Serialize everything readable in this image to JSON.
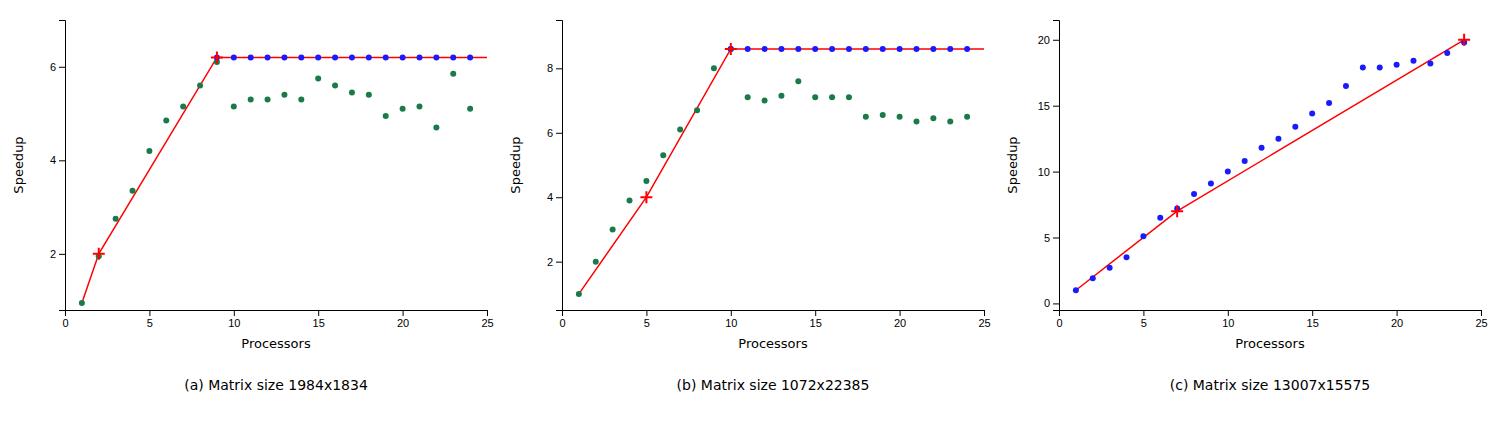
{
  "chart_data": [
    {
      "type": "scatter",
      "title": "(a) Matrix size 1984x1834",
      "xlabel": "Processors",
      "ylabel": "Speedup",
      "xlim": [
        0,
        25
      ],
      "ylim": [
        0.8,
        7.0
      ],
      "xticks": [
        0,
        5,
        10,
        15,
        20,
        25
      ],
      "yticks": [
        2,
        4,
        6
      ],
      "grid": false,
      "series": [
        {
          "type": "scatter",
          "marker": "circle",
          "color": "#1a7a4a",
          "x": [
            1,
            2,
            3,
            4,
            5,
            6,
            7,
            8,
            9,
            10,
            11,
            12,
            13,
            14,
            15,
            16,
            17,
            18,
            19,
            20,
            21,
            22,
            23,
            24
          ],
          "values": [
            0.95,
            1.95,
            2.75,
            3.35,
            4.2,
            4.85,
            5.15,
            5.6,
            6.1,
            5.15,
            5.3,
            5.3,
            5.4,
            5.3,
            5.75,
            5.6,
            5.45,
            5.4,
            4.95,
            5.1,
            5.15,
            4.7,
            5.85,
            5.1
          ]
        },
        {
          "type": "scatter",
          "marker": "circle",
          "color": "#1a1aff",
          "x": [
            9,
            10,
            11,
            12,
            13,
            14,
            15,
            16,
            17,
            18,
            19,
            20,
            21,
            22,
            23,
            24
          ],
          "values": [
            6.2,
            6.2,
            6.2,
            6.2,
            6.2,
            6.2,
            6.2,
            6.2,
            6.2,
            6.2,
            6.2,
            6.2,
            6.2,
            6.2,
            6.2,
            6.2
          ]
        },
        {
          "type": "line",
          "color": "#ff0000",
          "x": [
            1,
            2,
            9,
            25
          ],
          "values": [
            0.95,
            2.0,
            6.2,
            6.2
          ]
        },
        {
          "type": "scatter",
          "marker": "plus",
          "color": "#ff0000",
          "x": [
            2,
            9
          ],
          "values": [
            2.0,
            6.2
          ]
        }
      ]
    },
    {
      "type": "scatter",
      "title": "(b) Matrix size 1072x22385",
      "xlabel": "Processors",
      "ylabel": "Speedup",
      "xlim": [
        0,
        25
      ],
      "ylim": [
        0.5,
        9.5
      ],
      "xticks": [
        0,
        5,
        10,
        15,
        20,
        25
      ],
      "yticks": [
        2,
        4,
        6,
        8
      ],
      "grid": false,
      "series": [
        {
          "type": "scatter",
          "marker": "circle",
          "color": "#1a7a4a",
          "x": [
            1,
            2,
            3,
            4,
            5,
            6,
            7,
            8,
            9,
            10,
            11,
            12,
            13,
            14,
            15,
            16,
            17,
            18,
            19,
            20,
            21,
            22,
            23,
            24
          ],
          "values": [
            1.0,
            2.0,
            3.0,
            3.9,
            4.5,
            5.3,
            6.1,
            6.7,
            8.0,
            8.6,
            7.1,
            7.0,
            7.15,
            7.6,
            7.1,
            7.1,
            7.1,
            6.5,
            6.55,
            6.5,
            6.35,
            6.45,
            6.35,
            6.5
          ]
        },
        {
          "type": "scatter",
          "marker": "circle",
          "color": "#1a1aff",
          "x": [
            10,
            11,
            12,
            13,
            14,
            15,
            16,
            17,
            18,
            19,
            20,
            21,
            22,
            23,
            24
          ],
          "values": [
            8.6,
            8.6,
            8.6,
            8.6,
            8.6,
            8.6,
            8.6,
            8.6,
            8.6,
            8.6,
            8.6,
            8.6,
            8.6,
            8.6,
            8.6
          ]
        },
        {
          "type": "line",
          "color": "#ff0000",
          "x": [
            1,
            5,
            10,
            25
          ],
          "values": [
            1.0,
            4.0,
            8.6,
            8.6
          ]
        },
        {
          "type": "scatter",
          "marker": "plus",
          "color": "#ff0000",
          "x": [
            5,
            10
          ],
          "values": [
            4.0,
            8.6
          ]
        }
      ]
    },
    {
      "type": "scatter",
      "title": "(c) Matrix size 13007x15575",
      "xlabel": "Processors",
      "ylabel": "Speedup",
      "xlim": [
        0,
        25
      ],
      "ylim": [
        -0.5,
        21.5
      ],
      "xticks": [
        0,
        5,
        10,
        15,
        20,
        25
      ],
      "yticks": [
        0,
        5,
        10,
        15,
        20
      ],
      "grid": false,
      "series": [
        {
          "type": "scatter",
          "marker": "circle",
          "color": "#1a1aff",
          "x": [
            1,
            2,
            3,
            4,
            5,
            6,
            7,
            8,
            9,
            10,
            11,
            12,
            13,
            14,
            15,
            16,
            17,
            18,
            19,
            20,
            21,
            22,
            23,
            24
          ],
          "values": [
            1.0,
            1.9,
            2.7,
            3.5,
            5.1,
            6.5,
            7.2,
            8.3,
            9.1,
            10.0,
            10.8,
            11.8,
            12.5,
            13.4,
            14.4,
            15.2,
            16.5,
            17.9,
            17.9,
            18.1,
            18.4,
            18.2,
            19.0,
            19.8
          ]
        },
        {
          "type": "line",
          "color": "#ff0000",
          "x": [
            1,
            7,
            24
          ],
          "values": [
            1.0,
            7.0,
            20.0
          ]
        },
        {
          "type": "scatter",
          "marker": "plus",
          "color": "#ff0000",
          "x": [
            7,
            24
          ],
          "values": [
            7.0,
            20.0
          ]
        }
      ]
    }
  ]
}
